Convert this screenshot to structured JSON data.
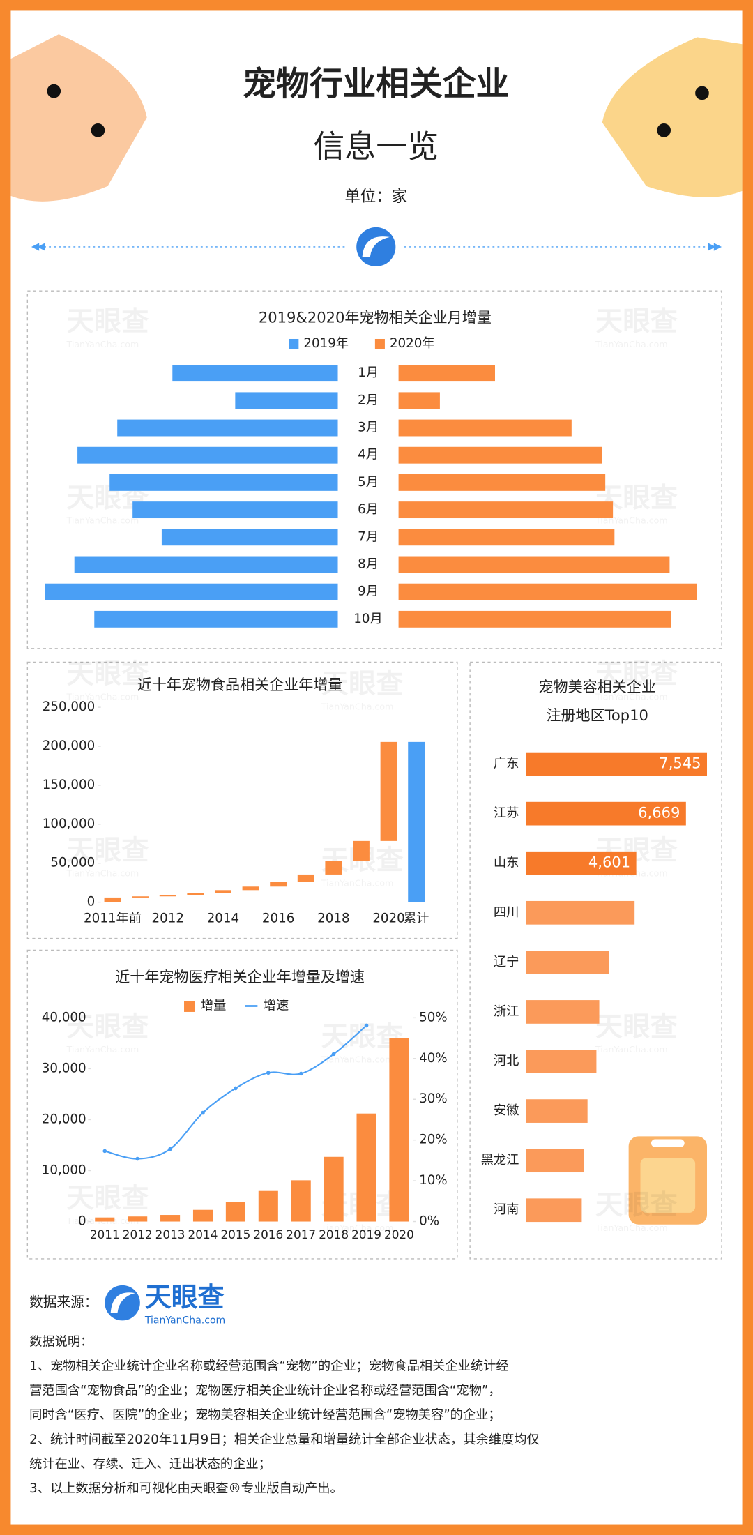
{
  "header": {
    "title": "宠物行业相关企业",
    "subtitle": "信息一览",
    "unit": "单位：家"
  },
  "watermark": {
    "name": "天眼查",
    "site": "TianYanCha.com"
  },
  "chart_data": [
    {
      "type": "butterfly",
      "title": "2019&2020年宠物相关企业月增量",
      "categories": [
        "1月",
        "2月",
        "3月",
        "4月",
        "5月",
        "6月",
        "7月",
        "8月",
        "9月",
        "10月"
      ],
      "series": [
        {
          "name": "2019年",
          "color": "#4a9ff5",
          "values": [
            10800,
            6700,
            14400,
            17000,
            14900,
            13400,
            11500,
            17200,
            19100,
            15900
          ]
        },
        {
          "name": "2020年",
          "color": "#fb8c3f",
          "values": [
            6300,
            2700,
            11300,
            13300,
            13500,
            14000,
            14100,
            17700,
            19500,
            17800
          ]
        }
      ]
    },
    {
      "type": "waterfall",
      "title": "近十年宠物食品相关企业年增量",
      "categories": [
        "2011年前",
        null,
        "2012",
        null,
        "2014",
        null,
        "2016",
        null,
        "2018",
        null,
        "2020",
        "累计"
      ],
      "values": [
        6000,
        1500,
        2000,
        2500,
        3500,
        4500,
        6500,
        9000,
        17000,
        26000,
        127000,
        205500
      ],
      "color": "#fb8c3f",
      "total_color": "#4a9ff5",
      "ylim": [
        0,
        250000
      ],
      "yticks": [
        0,
        {
          "value": 50000,
          "label": "50,000"
        },
        {
          "value": 100000,
          "label": "100,000"
        },
        {
          "value": 150000,
          "label": "150,000"
        },
        {
          "value": 200000,
          "label": "200,000"
        },
        {
          "value": 250000,
          "label": "250,000"
        }
      ]
    },
    {
      "type": "bar_line",
      "title": "近十年宠物医疗相关企业年增量及增速",
      "categories": [
        "2011",
        "2012",
        "2013",
        "2014",
        "2015",
        "2016",
        "2017",
        "2018",
        "2019",
        "2020"
      ],
      "series": [
        {
          "name": "增量",
          "color": "#fb8c3f",
          "values": [
            800,
            1000,
            1300,
            2300,
            3800,
            6000,
            8100,
            12700,
            21200,
            36000
          ]
        },
        {
          "name": "增速",
          "color": "#4a9ff5",
          "axis": "y2",
          "values": [
            17.3,
            15.4,
            17.8,
            26.7,
            32.7,
            36.5,
            36.3,
            41.1,
            48.1,
            null
          ]
        }
      ],
      "ylim": [
        0,
        40000
      ],
      "yticks": [
        0,
        {
          "value": 10000,
          "label": "10,000"
        },
        {
          "value": 20000,
          "label": "20,000"
        },
        {
          "value": 30000,
          "label": "30,000"
        },
        {
          "value": 40000,
          "label": "40,000"
        }
      ],
      "y2lim": [
        0,
        50
      ],
      "y2ticks": [
        {
          "value": 0,
          "label": "0%"
        },
        {
          "value": 10,
          "label": "10%"
        },
        {
          "value": 20,
          "label": "20%"
        },
        {
          "value": 30,
          "label": "30%"
        },
        {
          "value": 40,
          "label": "40%"
        },
        {
          "value": 50,
          "label": "50%"
        }
      ]
    },
    {
      "type": "hbar",
      "title": [
        "宠物美容相关企业",
        "注册地区Top10"
      ],
      "categories": [
        "广东",
        "江苏",
        "山东",
        "四川",
        "辽宁",
        "浙江",
        "河北",
        "安徽",
        "黑龙江",
        "河南"
      ],
      "values": [
        7545,
        6669,
        4601,
        4530,
        3470,
        3060,
        2940,
        2570,
        2410,
        2330
      ],
      "value_labels": [
        "7,545",
        "6,669",
        "4,601",
        null,
        null,
        null,
        null,
        null,
        null,
        null
      ],
      "colors": [
        "#f77a2a",
        "#f77a2a",
        "#f77a2a",
        "#fb9a5a",
        "#fb9a5a",
        "#fb9a5a",
        "#fb9a5a",
        "#fb9a5a",
        "#fb9a5a",
        "#fb9a5a"
      ]
    }
  ],
  "footer": {
    "source_label": "数据来源：",
    "brand": "天眼查",
    "site": "TianYanCha.com",
    "notes_title": "数据说明：",
    "notes": [
      "1、宠物相关企业统计企业名称或经营范围含“宠物”的企业；宠物食品相关企业统计经",
      "营范围含“宠物食品”的企业；宠物医疗相关企业统计企业名称或经营范围含“宠物”，",
      "同时含“医疗、医院”的企业；宠物美容相关企业统计经营范围含“宠物美容”的企业；",
      "2、统计时间截至2020年11月9日；相关企业总量和增量统计全部企业状态，其余维度均仅",
      "统计在业、存续、迁入、迁出状态的企业；",
      "3、以上数据分析和可视化由天眼查®专业版自动产出。"
    ]
  }
}
